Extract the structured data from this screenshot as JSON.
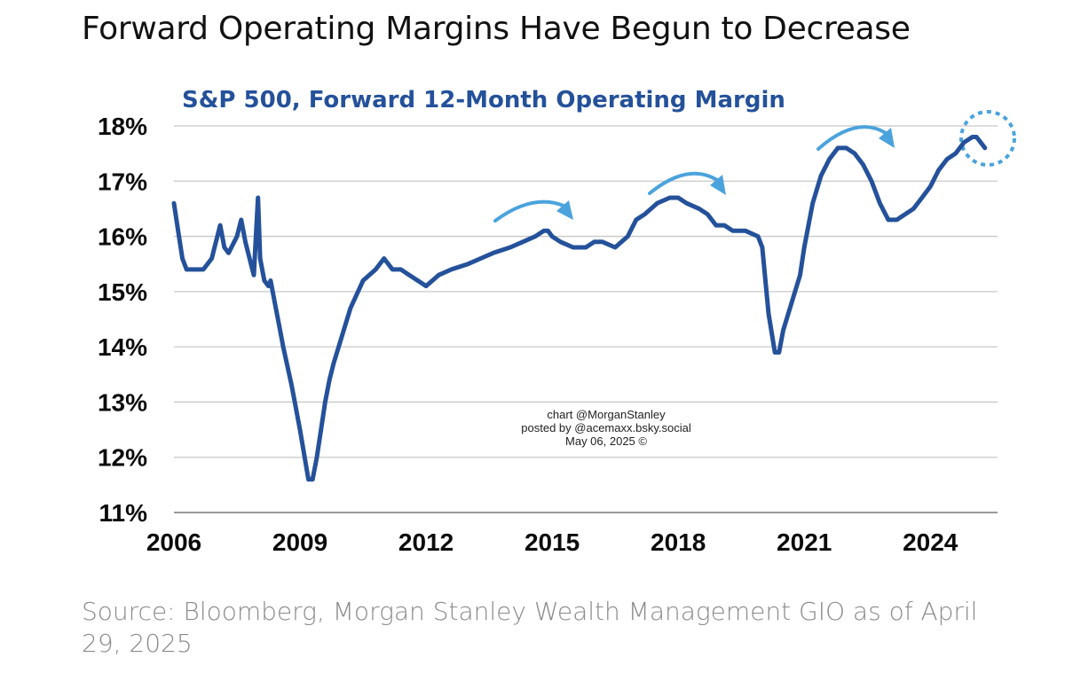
{
  "title": "Forward Operating Margins Have Begun to Decrease",
  "source": "Source: Bloomberg, Morgan Stanley Wealth Management GIO as of April 29, 2025",
  "colors": {
    "line": "#24519a",
    "arrows": "#4aa3dc",
    "grid": "#c8c8c8",
    "axis": "#9a9a9a"
  },
  "chart_data": {
    "type": "line",
    "title": "S&P 500, Forward 12-Month Operating Margin",
    "xlabel": "",
    "ylabel": "",
    "x_ticks": [
      "2006",
      "2009",
      "2012",
      "2015",
      "2018",
      "2021",
      "2024"
    ],
    "y_ticks": [
      "11%",
      "12%",
      "13%",
      "14%",
      "15%",
      "16%",
      "17%",
      "18%"
    ],
    "xlim": [
      2006.0,
      2025.6
    ],
    "ylim": [
      11,
      18
    ],
    "y_unit": "%",
    "grid": "horizontal",
    "annotations": [
      "chart @MorganStanley",
      "posted by @acemaxx.bsky.social",
      "May 06, 2025 ©"
    ],
    "series": [
      {
        "x": [
          2006.0,
          2006.1,
          2006.2,
          2006.3,
          2006.4,
          2006.5,
          2006.7,
          2006.9,
          2007.0,
          2007.1,
          2007.2,
          2007.3,
          2007.5,
          2007.6,
          2007.7,
          2007.8,
          2007.9,
          2008.0,
          2008.05,
          2008.15,
          2008.25,
          2008.3,
          2008.4,
          2008.5,
          2008.6,
          2008.8,
          2009.0,
          2009.2,
          2009.3,
          2009.4,
          2009.5,
          2009.6,
          2009.7,
          2009.8,
          2010.0,
          2010.2,
          2010.5,
          2010.8,
          2011.0,
          2011.2,
          2011.4,
          2011.6,
          2011.8,
          2012.0,
          2012.3,
          2012.6,
          2013.0,
          2013.3,
          2013.6,
          2014.0,
          2014.3,
          2014.6,
          2014.8,
          2014.9,
          2015.0,
          2015.2,
          2015.5,
          2015.8,
          2016.0,
          2016.2,
          2016.5,
          2016.8,
          2017.0,
          2017.2,
          2017.5,
          2017.8,
          2018.0,
          2018.2,
          2018.5,
          2018.7,
          2018.9,
          2019.1,
          2019.3,
          2019.6,
          2019.9,
          2020.0,
          2020.15,
          2020.3,
          2020.4,
          2020.5,
          2020.7,
          2020.9,
          2021.0,
          2021.2,
          2021.4,
          2021.6,
          2021.8,
          2022.0,
          2022.2,
          2022.4,
          2022.6,
          2022.8,
          2023.0,
          2023.2,
          2023.4,
          2023.6,
          2023.8,
          2024.0,
          2024.2,
          2024.4,
          2024.6,
          2024.8,
          2025.0,
          2025.1,
          2025.2,
          2025.3
        ],
        "y": [
          16.6,
          16.1,
          15.6,
          15.4,
          15.4,
          15.4,
          15.4,
          15.6,
          15.9,
          16.2,
          15.8,
          15.7,
          16.0,
          16.3,
          15.9,
          15.6,
          15.3,
          16.7,
          15.6,
          15.2,
          15.1,
          15.2,
          14.8,
          14.4,
          14.0,
          13.3,
          12.5,
          11.6,
          11.6,
          12.0,
          12.5,
          13.0,
          13.4,
          13.7,
          14.2,
          14.7,
          15.2,
          15.4,
          15.6,
          15.4,
          15.4,
          15.3,
          15.2,
          15.1,
          15.3,
          15.4,
          15.5,
          15.6,
          15.7,
          15.8,
          15.9,
          16.0,
          16.1,
          16.1,
          16.0,
          15.9,
          15.8,
          15.8,
          15.9,
          15.9,
          15.8,
          16.0,
          16.3,
          16.4,
          16.6,
          16.7,
          16.7,
          16.6,
          16.5,
          16.4,
          16.2,
          16.2,
          16.1,
          16.1,
          16.0,
          15.8,
          14.6,
          13.9,
          13.9,
          14.3,
          14.8,
          15.3,
          15.8,
          16.6,
          17.1,
          17.4,
          17.6,
          17.6,
          17.5,
          17.3,
          17.0,
          16.6,
          16.3,
          16.3,
          16.4,
          16.5,
          16.7,
          16.9,
          17.2,
          17.4,
          17.5,
          17.7,
          17.8,
          17.8,
          17.7,
          17.6
        ]
      }
    ]
  }
}
